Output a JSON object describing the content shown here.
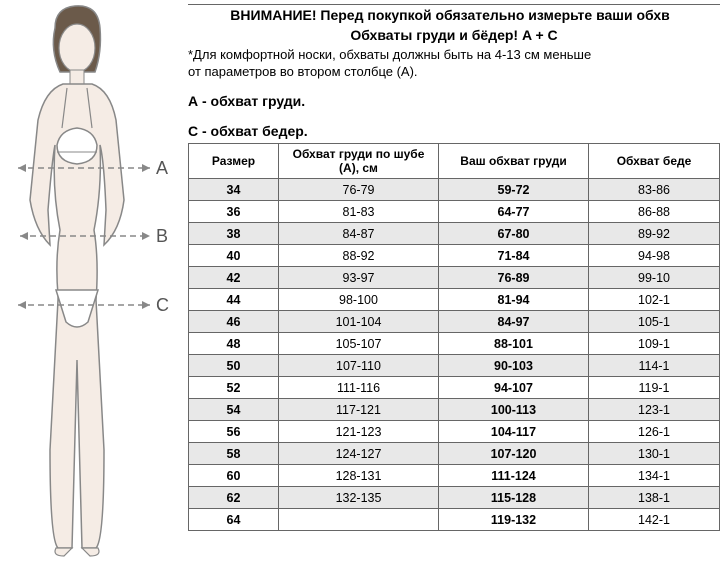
{
  "header": {
    "warning": "ВНИМАНИЕ! Перед покупкой обязательно измерьте ваши обхв",
    "subtitle": "Обхваты груди и бёдер! A + C",
    "note1": "*Для комфортной носки, обхваты должны быть на 4-13 см меньше",
    "note2": "от параметров во втором столбце (А)."
  },
  "sections": {
    "a_label": "А - обхват груди.",
    "c_label": "С - обхват бедер."
  },
  "figure": {
    "labels": {
      "a": "A",
      "b": "B",
      "c": "C"
    },
    "body_fill": "#f5ece5",
    "underwear_fill": "#ffffff",
    "outline": "#888888",
    "hair_fill": "#6b5a4a",
    "line_color": "#888888"
  },
  "table": {
    "columns": [
      "Размер",
      "Обхват груди по шубе (А), см",
      "Ваш обхват груди",
      "Обхват беде"
    ],
    "col_widths": [
      "90px",
      "160px",
      "150px",
      "auto"
    ],
    "rows": [
      {
        "size": "34",
        "a": "76-79",
        "bust": "59-72",
        "hip": "83-86"
      },
      {
        "size": "36",
        "a": "81-83",
        "bust": "64-77",
        "hip": "86-88"
      },
      {
        "size": "38",
        "a": "84-87",
        "bust": "67-80",
        "hip": "89-92"
      },
      {
        "size": "40",
        "a": "88-92",
        "bust": "71-84",
        "hip": "94-98"
      },
      {
        "size": "42",
        "a": "93-97",
        "bust": "76-89",
        "hip": "99-10"
      },
      {
        "size": "44",
        "a": "98-100",
        "bust": "81-94",
        "hip": "102-1"
      },
      {
        "size": "46",
        "a": "101-104",
        "bust": "84-97",
        "hip": "105-1"
      },
      {
        "size": "48",
        "a": "105-107",
        "bust": "88-101",
        "hip": "109-1"
      },
      {
        "size": "50",
        "a": "107-110",
        "bust": "90-103",
        "hip": "114-1"
      },
      {
        "size": "52",
        "a": "111-116",
        "bust": "94-107",
        "hip": "119-1"
      },
      {
        "size": "54",
        "a": "117-121",
        "bust": "100-113",
        "hip": "123-1"
      },
      {
        "size": "56",
        "a": "121-123",
        "bust": "104-117",
        "hip": "126-1"
      },
      {
        "size": "58",
        "a": "124-127",
        "bust": "107-120",
        "hip": "130-1"
      },
      {
        "size": "60",
        "a": "128-131",
        "bust": "111-124",
        "hip": "134-1"
      },
      {
        "size": "62",
        "a": "132-135",
        "bust": "115-128",
        "hip": "138-1"
      },
      {
        "size": "64",
        "a": "",
        "bust": "119-132",
        "hip": "142-1"
      }
    ],
    "bold_cols": [
      "size",
      "bust"
    ],
    "row_bg_even": "#e8e8e8",
    "row_bg_odd": "#ffffff",
    "border_color": "#666666"
  }
}
